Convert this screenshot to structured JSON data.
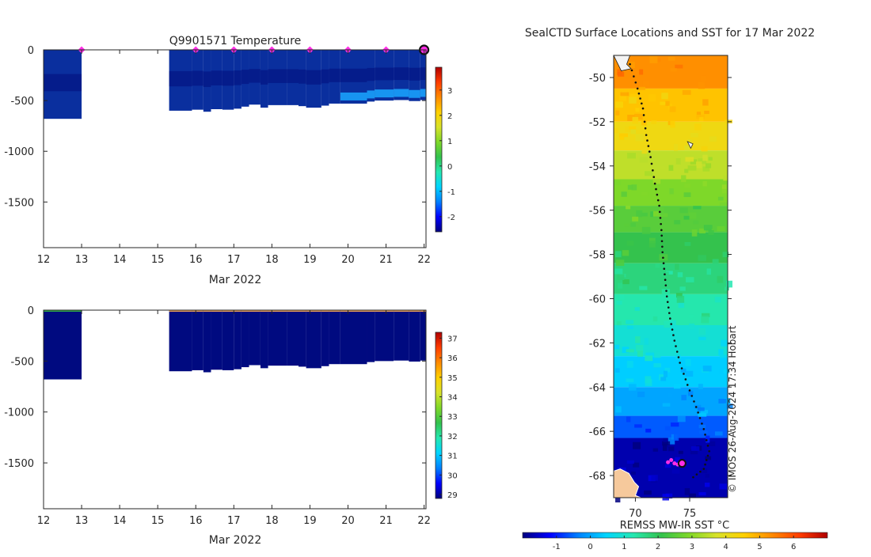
{
  "colors": {
    "axis": "#262626",
    "profile_fill": "#0a2f9e",
    "profile_deep": "#01107e",
    "salinity_fill": "#000a80",
    "surface_orange": "#e9a05a",
    "surface_green": "#2fa84a",
    "marker_magenta": "#ff2ee6",
    "marker_ring": "#111111",
    "land": "#f6c99c",
    "track": "#111111"
  },
  "chart_data": [
    {
      "id": "temperature-section",
      "type": "heatmap",
      "title": "Q9901571  Temperature",
      "xlabel": "Mar 2022",
      "ylabel": "",
      "xlim": [
        12,
        22.05
      ],
      "ylim": [
        -1950,
        0
      ],
      "x_ticks": [
        "12",
        "13",
        "14",
        "15",
        "16",
        "17",
        "18",
        "19",
        "20",
        "21",
        "22"
      ],
      "y_ticks": [
        "0",
        "-500",
        "-1000",
        "-1500"
      ],
      "y_tick_values": [
        0,
        -500,
        -1000,
        -1500
      ],
      "profile_depths": [
        {
          "start": 12.0,
          "end": 13.0,
          "depth": -680
        },
        {
          "start": 15.3,
          "end": 15.9,
          "depth": -600
        },
        {
          "start": 15.9,
          "end": 16.2,
          "depth": -590
        },
        {
          "start": 16.2,
          "end": 16.4,
          "depth": -610
        },
        {
          "start": 16.4,
          "end": 16.7,
          "depth": -585
        },
        {
          "start": 16.7,
          "end": 17.0,
          "depth": -590
        },
        {
          "start": 17.0,
          "end": 17.2,
          "depth": -580
        },
        {
          "start": 17.2,
          "end": 17.4,
          "depth": -560
        },
        {
          "start": 17.4,
          "end": 17.7,
          "depth": -540
        },
        {
          "start": 17.7,
          "end": 17.9,
          "depth": -570
        },
        {
          "start": 17.9,
          "end": 18.4,
          "depth": -545
        },
        {
          "start": 18.4,
          "end": 18.7,
          "depth": -545
        },
        {
          "start": 18.7,
          "end": 18.9,
          "depth": -555
        },
        {
          "start": 18.9,
          "end": 19.3,
          "depth": -570
        },
        {
          "start": 19.3,
          "end": 19.5,
          "depth": -550
        },
        {
          "start": 19.5,
          "end": 19.8,
          "depth": -530
        },
        {
          "start": 19.8,
          "end": 20.5,
          "depth": -530
        },
        {
          "start": 20.5,
          "end": 20.7,
          "depth": -510
        },
        {
          "start": 20.7,
          "end": 21.2,
          "depth": -500
        },
        {
          "start": 21.2,
          "end": 21.6,
          "depth": -495
        },
        {
          "start": 21.6,
          "end": 21.9,
          "depth": -505
        },
        {
          "start": 21.9,
          "end": 22.05,
          "depth": -495
        }
      ],
      "surface_markers_x": [
        13,
        16,
        17,
        18,
        19,
        20,
        21
      ],
      "latest_marker_x": 22,
      "colorbar": {
        "range": [
          -2.6,
          3.9
        ],
        "ticks": [
          "3",
          "2",
          "1",
          "0",
          "-1",
          "-2"
        ],
        "tick_values": [
          3,
          2,
          1,
          0,
          -1,
          -2
        ]
      }
    },
    {
      "id": "salinity-section",
      "type": "heatmap",
      "title": "",
      "xlabel": "Mar 2022",
      "ylabel": "",
      "xlim": [
        12,
        22.05
      ],
      "ylim": [
        -1950,
        0
      ],
      "x_ticks": [
        "12",
        "13",
        "14",
        "15",
        "16",
        "17",
        "18",
        "19",
        "20",
        "21",
        "22"
      ],
      "y_ticks": [
        "0",
        "-500",
        "-1000",
        "-1500"
      ],
      "y_tick_values": [
        0,
        -500,
        -1000,
        -1500
      ],
      "profile_depths": [
        {
          "start": 12.0,
          "end": 13.0,
          "depth": -680
        },
        {
          "start": 15.3,
          "end": 15.9,
          "depth": -600
        },
        {
          "start": 15.9,
          "end": 16.2,
          "depth": -590
        },
        {
          "start": 16.2,
          "end": 16.4,
          "depth": -610
        },
        {
          "start": 16.4,
          "end": 16.7,
          "depth": -585
        },
        {
          "start": 16.7,
          "end": 17.0,
          "depth": -590
        },
        {
          "start": 17.0,
          "end": 17.2,
          "depth": -580
        },
        {
          "start": 17.2,
          "end": 17.4,
          "depth": -560
        },
        {
          "start": 17.4,
          "end": 17.7,
          "depth": -540
        },
        {
          "start": 17.7,
          "end": 17.9,
          "depth": -570
        },
        {
          "start": 17.9,
          "end": 18.4,
          "depth": -545
        },
        {
          "start": 18.4,
          "end": 18.7,
          "depth": -545
        },
        {
          "start": 18.7,
          "end": 18.9,
          "depth": -555
        },
        {
          "start": 18.9,
          "end": 19.3,
          "depth": -570
        },
        {
          "start": 19.3,
          "end": 19.5,
          "depth": -550
        },
        {
          "start": 19.5,
          "end": 19.8,
          "depth": -530
        },
        {
          "start": 19.8,
          "end": 20.5,
          "depth": -530
        },
        {
          "start": 20.5,
          "end": 20.7,
          "depth": -510
        },
        {
          "start": 20.7,
          "end": 21.2,
          "depth": -500
        },
        {
          "start": 21.2,
          "end": 21.6,
          "depth": -495
        },
        {
          "start": 21.6,
          "end": 21.9,
          "depth": -505
        },
        {
          "start": 21.9,
          "end": 22.05,
          "depth": -495
        }
      ],
      "colorbar": {
        "range": [
          28.8,
          37.3
        ],
        "ticks": [
          "37",
          "36",
          "35",
          "34",
          "33",
          "32",
          "31",
          "30",
          "29"
        ],
        "tick_values": [
          37,
          36,
          35,
          34,
          33,
          32,
          31,
          30,
          29
        ]
      }
    },
    {
      "id": "sst-map",
      "type": "heatmap",
      "title": "SealCTD Surface Locations and SST for 17 Mar 2022",
      "xlim": [
        68,
        78.5
      ],
      "ylim": [
        -69,
        -49
      ],
      "x_ticks": [
        "70",
        "75"
      ],
      "x_tick_values": [
        70,
        75
      ],
      "y_ticks": [
        "-50",
        "-52",
        "-54",
        "-56",
        "-58",
        "-60",
        "-62",
        "-64",
        "-66",
        "-68"
      ],
      "y_tick_values": [
        -50,
        -52,
        -54,
        -56,
        -58,
        -60,
        -62,
        -64,
        -66,
        -68
      ],
      "sst_bands": [
        {
          "lat_top": -49.0,
          "lat_bottom": -50.5,
          "value": 5.3
        },
        {
          "lat_top": -50.5,
          "lat_bottom": -52.0,
          "value": 4.7
        },
        {
          "lat_top": -52.0,
          "lat_bottom": -53.3,
          "value": 4.2
        },
        {
          "lat_top": -53.3,
          "lat_bottom": -54.6,
          "value": 3.5
        },
        {
          "lat_top": -54.6,
          "lat_bottom": -55.8,
          "value": 2.9
        },
        {
          "lat_top": -55.8,
          "lat_bottom": -57.0,
          "value": 2.5
        },
        {
          "lat_top": -57.0,
          "lat_bottom": -58.4,
          "value": 2.1
        },
        {
          "lat_top": -58.4,
          "lat_bottom": -59.8,
          "value": 1.7
        },
        {
          "lat_top": -59.8,
          "lat_bottom": -61.2,
          "value": 1.3
        },
        {
          "lat_top": -61.2,
          "lat_bottom": -62.6,
          "value": 0.9
        },
        {
          "lat_top": -62.6,
          "lat_bottom": -64.0,
          "value": 0.4
        },
        {
          "lat_top": -64.0,
          "lat_bottom": -65.3,
          "value": 0.0
        },
        {
          "lat_top": -65.3,
          "lat_bottom": -66.3,
          "value": -0.6
        },
        {
          "lat_top": -66.3,
          "lat_bottom": -69.0,
          "value": -1.7
        }
      ],
      "track": {
        "lon": [
          69.5,
          70.2,
          70.7,
          71.0,
          71.4,
          71.8,
          72.2,
          72.4,
          72.5,
          72.7,
          72.9,
          73.2,
          73.6,
          74.1,
          74.8,
          75.6,
          76.3,
          76.8,
          76.3,
          75.0
        ],
        "lat": [
          -49.4,
          -50.5,
          -51.4,
          -52.6,
          -53.6,
          -54.8,
          -55.8,
          -56.9,
          -57.9,
          -58.9,
          -59.9,
          -60.9,
          -61.9,
          -62.9,
          -63.9,
          -64.9,
          -65.9,
          -66.9,
          -67.7,
          -68.2
        ]
      },
      "profile_locations": [
        {
          "lon": 73.0,
          "lat": -67.4
        },
        {
          "lon": 73.3,
          "lat": -67.3
        },
        {
          "lon": 73.6,
          "lat": -67.45
        },
        {
          "lon": 73.9,
          "lat": -67.5
        },
        {
          "lon": 74.2,
          "lat": -67.4
        }
      ],
      "latest_location": {
        "lon": 74.3,
        "lat": -67.45
      },
      "credit": "© IMOS 26-Aug-2024 17:34 Hobart",
      "colorbar": {
        "label": "REMSS MW-IR SST °C",
        "range": [
          -2.0,
          7.0
        ],
        "ticks": [
          "-1",
          "0",
          "1",
          "2",
          "3",
          "4",
          "5",
          "6"
        ],
        "tick_values": [
          -1,
          0,
          1,
          2,
          3,
          4,
          5,
          6
        ]
      }
    }
  ]
}
